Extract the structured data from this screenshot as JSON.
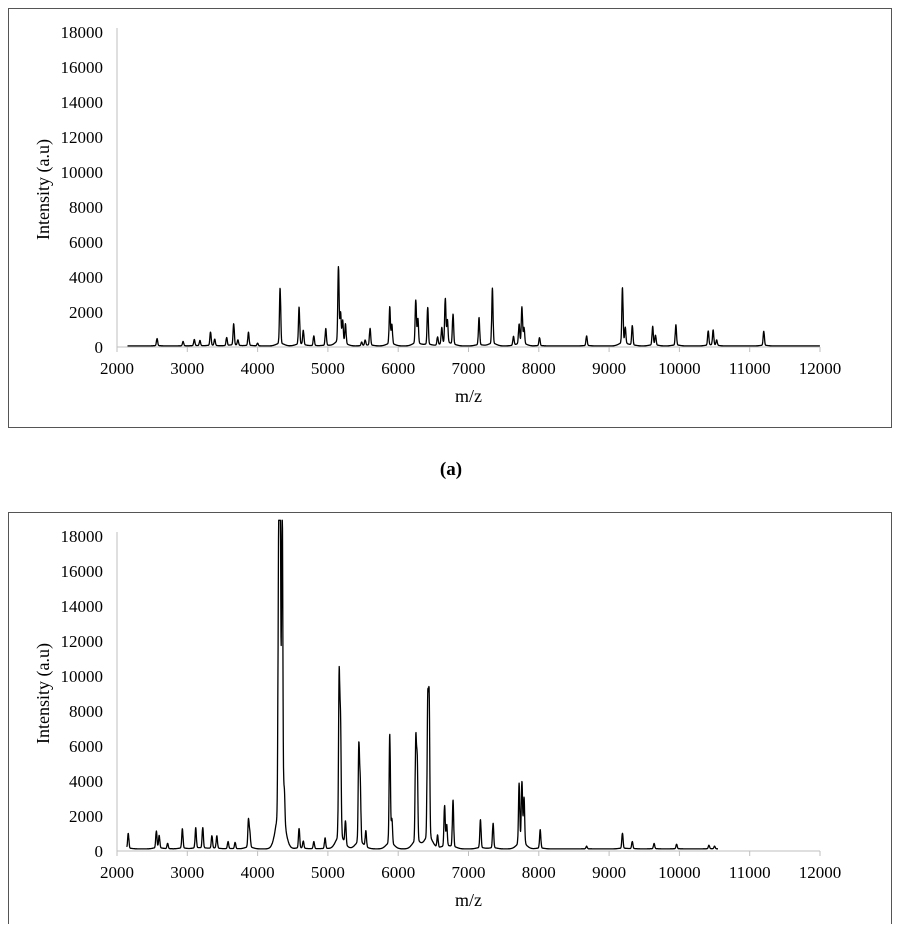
{
  "panel_label": "(a)",
  "chart_data": [
    {
      "type": "line",
      "title": "",
      "xlabel": "m/z",
      "ylabel": "Intensity (a.u)",
      "xlim": [
        2000,
        12000
      ],
      "ylim": [
        0,
        18000
      ],
      "xticks": [
        2000,
        3000,
        4000,
        5000,
        6000,
        7000,
        8000,
        9000,
        10000,
        11000,
        12000
      ],
      "yticks": [
        0,
        2000,
        4000,
        6000,
        8000,
        10000,
        12000,
        14000,
        16000,
        18000
      ],
      "xtick_labels": [
        "2000",
        "3000",
        "4000",
        "5000",
        "6000",
        "7000",
        "8000",
        "9000",
        "10000",
        "11000",
        "12000"
      ],
      "ytick_labels": [
        "0",
        "2000",
        "4000",
        "6000",
        "8000",
        "10000",
        "12000",
        "14000",
        "16000",
        "18000"
      ],
      "grid": false,
      "legend": "none",
      "line_color": "#000000",
      "x_range_data": [
        2150,
        12000
      ],
      "baseline": 60,
      "peaks": [
        {
          "x": 2570,
          "y": 400
        },
        {
          "x": 2940,
          "y": 250
        },
        {
          "x": 3100,
          "y": 350
        },
        {
          "x": 3180,
          "y": 300
        },
        {
          "x": 3330,
          "y": 750
        },
        {
          "x": 3390,
          "y": 350
        },
        {
          "x": 3560,
          "y": 450
        },
        {
          "x": 3660,
          "y": 1200
        },
        {
          "x": 3720,
          "y": 300
        },
        {
          "x": 3870,
          "y": 750
        },
        {
          "x": 4000,
          "y": 150
        },
        {
          "x": 4320,
          "y": 3150
        },
        {
          "x": 4590,
          "y": 2100
        },
        {
          "x": 4650,
          "y": 800
        },
        {
          "x": 4800,
          "y": 550
        },
        {
          "x": 4970,
          "y": 950
        },
        {
          "x": 5150,
          "y": 4200
        },
        {
          "x": 5180,
          "y": 1600
        },
        {
          "x": 5210,
          "y": 1200
        },
        {
          "x": 5250,
          "y": 1100
        },
        {
          "x": 5480,
          "y": 200
        },
        {
          "x": 5530,
          "y": 300
        },
        {
          "x": 5600,
          "y": 950
        },
        {
          "x": 5880,
          "y": 2100
        },
        {
          "x": 5910,
          "y": 1100
        },
        {
          "x": 6250,
          "y": 2450
        },
        {
          "x": 6280,
          "y": 1400
        },
        {
          "x": 6420,
          "y": 2100
        },
        {
          "x": 6560,
          "y": 450
        },
        {
          "x": 6620,
          "y": 900
        },
        {
          "x": 6670,
          "y": 2500
        },
        {
          "x": 6700,
          "y": 1300
        },
        {
          "x": 6780,
          "y": 1700
        },
        {
          "x": 7150,
          "y": 1550
        },
        {
          "x": 7340,
          "y": 3150
        },
        {
          "x": 7640,
          "y": 500
        },
        {
          "x": 7720,
          "y": 1100
        },
        {
          "x": 7760,
          "y": 2050
        },
        {
          "x": 7790,
          "y": 900
        },
        {
          "x": 8010,
          "y": 450
        },
        {
          "x": 8680,
          "y": 550
        },
        {
          "x": 9190,
          "y": 3150
        },
        {
          "x": 9230,
          "y": 900
        },
        {
          "x": 9330,
          "y": 1100
        },
        {
          "x": 9620,
          "y": 1050
        },
        {
          "x": 9660,
          "y": 550
        },
        {
          "x": 9950,
          "y": 1150
        },
        {
          "x": 10410,
          "y": 800
        },
        {
          "x": 10480,
          "y": 850
        },
        {
          "x": 10530,
          "y": 300
        },
        {
          "x": 11200,
          "y": 800
        }
      ]
    },
    {
      "type": "line",
      "title": "",
      "xlabel": "m/z",
      "ylabel": "Intensity (a.u)",
      "xlim": [
        2000,
        12000
      ],
      "ylim": [
        0,
        18000
      ],
      "xticks": [
        2000,
        3000,
        4000,
        5000,
        6000,
        7000,
        8000,
        9000,
        10000,
        11000,
        12000
      ],
      "yticks": [
        0,
        2000,
        4000,
        6000,
        8000,
        10000,
        12000,
        14000,
        16000,
        18000
      ],
      "xtick_labels": [
        "2000",
        "3000",
        "4000",
        "5000",
        "6000",
        "7000",
        "8000",
        "9000",
        "10000",
        "11000",
        "12000"
      ],
      "ytick_labels": [
        "0",
        "2000",
        "4000",
        "6000",
        "8000",
        "10000",
        "12000",
        "14000",
        "16000",
        "18000"
      ],
      "grid": false,
      "legend": "none",
      "line_color": "#000000",
      "x_range_data": [
        2140,
        10550
      ],
      "baseline": 120,
      "peaks": [
        {
          "x": 2160,
          "y": 850
        },
        {
          "x": 2560,
          "y": 950
        },
        {
          "x": 2600,
          "y": 700
        },
        {
          "x": 2720,
          "y": 300
        },
        {
          "x": 2930,
          "y": 1100
        },
        {
          "x": 3120,
          "y": 1150
        },
        {
          "x": 3220,
          "y": 1150
        },
        {
          "x": 3350,
          "y": 700
        },
        {
          "x": 3420,
          "y": 700
        },
        {
          "x": 3580,
          "y": 400
        },
        {
          "x": 3680,
          "y": 350
        },
        {
          "x": 3870,
          "y": 1550
        },
        {
          "x": 3890,
          "y": 800
        },
        {
          "x": 4300,
          "y": 15600
        },
        {
          "x": 4320,
          "y": 18900
        },
        {
          "x": 4350,
          "y": 17700
        },
        {
          "x": 4380,
          "y": 1800
        },
        {
          "x": 4590,
          "y": 1100
        },
        {
          "x": 4650,
          "y": 400
        },
        {
          "x": 4800,
          "y": 400
        },
        {
          "x": 4960,
          "y": 600
        },
        {
          "x": 5160,
          "y": 9050
        },
        {
          "x": 5180,
          "y": 6200
        },
        {
          "x": 5250,
          "y": 1300
        },
        {
          "x": 5440,
          "y": 5400
        },
        {
          "x": 5460,
          "y": 3300
        },
        {
          "x": 5540,
          "y": 900
        },
        {
          "x": 5880,
          "y": 6200
        },
        {
          "x": 5910,
          "y": 1400
        },
        {
          "x": 6250,
          "y": 5700
        },
        {
          "x": 6270,
          "y": 4500
        },
        {
          "x": 6420,
          "y": 7550
        },
        {
          "x": 6440,
          "y": 7700
        },
        {
          "x": 6560,
          "y": 700
        },
        {
          "x": 6660,
          "y": 2300
        },
        {
          "x": 6690,
          "y": 1200
        },
        {
          "x": 6780,
          "y": 2650
        },
        {
          "x": 7170,
          "y": 1600
        },
        {
          "x": 7350,
          "y": 1400
        },
        {
          "x": 7720,
          "y": 3400
        },
        {
          "x": 7760,
          "y": 3450
        },
        {
          "x": 7790,
          "y": 2600
        },
        {
          "x": 8020,
          "y": 1050
        },
        {
          "x": 8680,
          "y": 150
        },
        {
          "x": 9190,
          "y": 850
        },
        {
          "x": 9330,
          "y": 400
        },
        {
          "x": 9640,
          "y": 300
        },
        {
          "x": 9960,
          "y": 250
        },
        {
          "x": 10420,
          "y": 200
        },
        {
          "x": 10500,
          "y": 150
        }
      ]
    }
  ]
}
